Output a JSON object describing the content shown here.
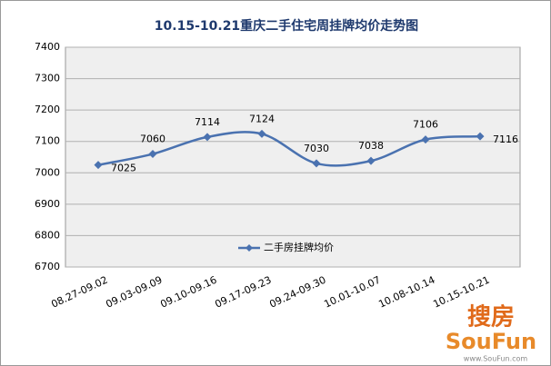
{
  "chart_data": {
    "type": "line",
    "title": "10.15-10.21重庆二手住宅周挂牌均价走势图",
    "categories": [
      "08.27-09.02",
      "09.03-09.09",
      "09.10-09.16",
      "09.17-09.23",
      "09.24-09.30",
      "10.01-10.07",
      "10.08-10.14",
      "10.15-10.21"
    ],
    "series": [
      {
        "name": "二手房挂牌均价",
        "color": "#4a72b0",
        "values": [
          7025,
          7060,
          7114,
          7124,
          7030,
          7038,
          7106,
          7116
        ]
      }
    ],
    "ylim": [
      6700,
      7400
    ],
    "yticks": [
      6700,
      6800,
      6900,
      7000,
      7100,
      7200,
      7300,
      7400
    ],
    "grid": true,
    "legend": "bottom",
    "watermark": {
      "brand_cn": "搜房",
      "brand_en": "SouFun",
      "url": "www.SouFun.com"
    }
  }
}
